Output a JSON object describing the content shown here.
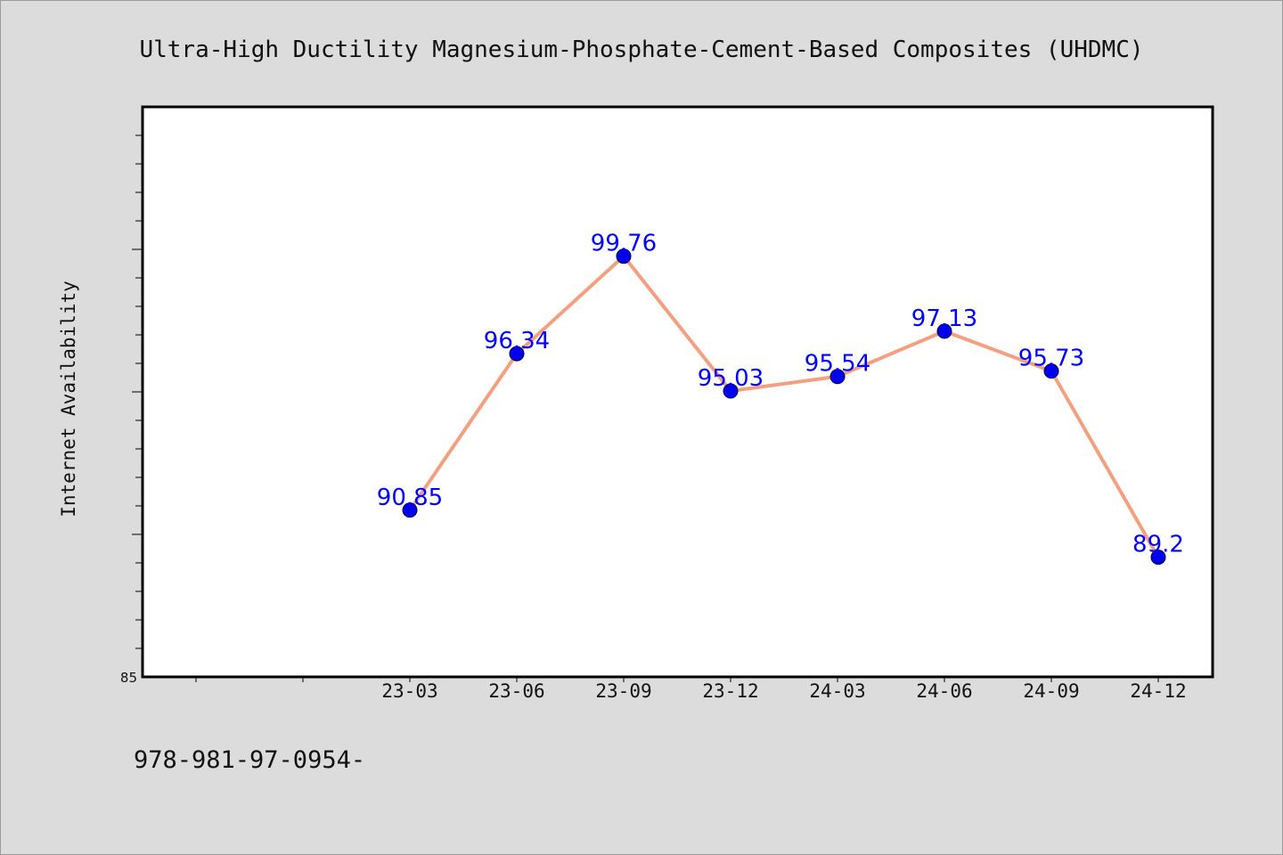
{
  "chart_data": {
    "type": "line",
    "title": "Ultra-High Ductility Magnesium-Phosphate-Cement-Based Composites (UHDMC)",
    "ylabel": "Internet Availability",
    "xlabel": "",
    "categories": [
      "23-03",
      "23-06",
      "23-09",
      "23-12",
      "24-03",
      "24-06",
      "24-09",
      "24-12"
    ],
    "series": [
      {
        "values": [
          90.85,
          96.34,
          99.76,
          95.03,
          95.54,
          97.13,
          95.73,
          89.2
        ],
        "labels": [
          "90.85",
          "96.34",
          "99.76",
          "95.03",
          "95.54",
          "97.13",
          "95.73",
          "89.2"
        ]
      }
    ],
    "ylim": [
      85,
      105
    ],
    "y_tick_labels": [
      "85"
    ],
    "line_color": "#f4a07f",
    "marker_color": "#0000ee",
    "label_color": "#0000ff",
    "grid": false,
    "legend": "none"
  },
  "footer": {
    "text": "978-981-97-0954-"
  }
}
